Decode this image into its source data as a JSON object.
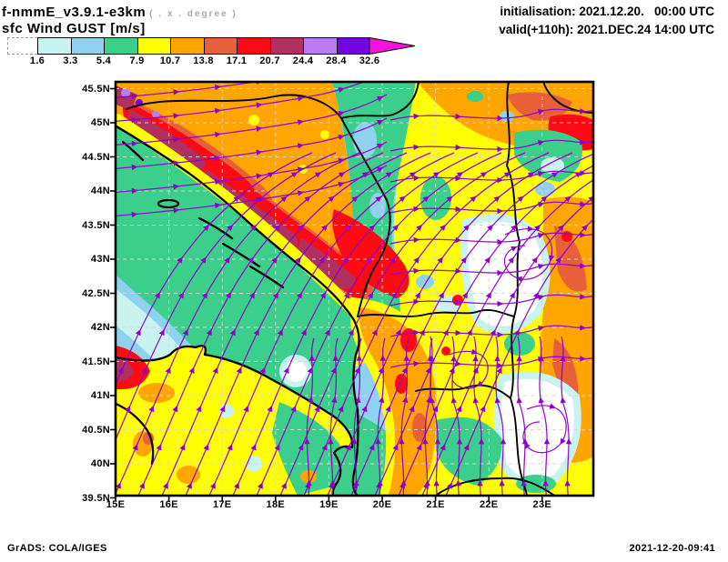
{
  "header": {
    "model_title": "f-nmmE_v3.9.1-e3km",
    "model_subtitle": "( . x . degree )",
    "field_title": "sfc Wind GUST [m/s]",
    "init_line": "initialisation: 2021.12.20.   00:00 UTC",
    "valid_line": "valid(+110h): 2021.DEC.24 14:00 UTC"
  },
  "colorbar": {
    "levels": [
      "1.6",
      "3.3",
      "5.4",
      "7.9",
      "10.7",
      "13.8",
      "17.1",
      "20.7",
      "24.4",
      "28.4",
      "32.6"
    ],
    "box_colors": [
      "#FFFFFF",
      "#C9F3F1",
      "#8FD2F0",
      "#3CCF8C",
      "#FFFF00",
      "#FFA500",
      "#E8603A",
      "#FC0B14",
      "#B03060",
      "#BB7CF2",
      "#7404E0"
    ],
    "overflow_arrow_color": "#F214DC"
  },
  "map": {
    "lat_ticks": [
      "45.5N",
      "45N",
      "44.5N",
      "44N",
      "43.5N",
      "43N",
      "42.5N",
      "42N",
      "41.5N",
      "41N",
      "40.5N",
      "40N",
      "39.5N"
    ],
    "lon_ticks": [
      "15E",
      "16E",
      "17E",
      "18E",
      "19E",
      "20E",
      "21E",
      "22E",
      "23E"
    ]
  },
  "footer": {
    "left": "GrADS: COLA/IGES",
    "right": "2021-12-20-09:41"
  },
  "chart_data": {
    "type": "heatmap",
    "title": "sfc Wind GUST [m/s]",
    "model": "f-nmmE_v3.9.1-e3km",
    "initialisation": "2021.12.20. 00:00 UTC",
    "valid": "2021.DEC.24 14:00 UTC",
    "forecast_hour": "+110h",
    "overlay": "wind streamlines (purple, with arrowheads)",
    "lon_ticks_deg_e": [
      15,
      16,
      17,
      18,
      19,
      20,
      21,
      22,
      23
    ],
    "lat_ticks_deg_n": [
      45.5,
      45,
      44.5,
      44,
      43.5,
      43,
      42.5,
      42,
      41.5,
      41,
      40.5,
      40,
      39.5
    ],
    "lon_range_deg_e": [
      15,
      23.95
    ],
    "lat_range_deg_n": [
      39.5,
      45.6
    ],
    "gust_levels_mps": [
      1.6,
      3.3,
      5.4,
      7.9,
      10.7,
      13.8,
      17.1,
      20.7,
      24.4,
      28.4,
      32.6
    ],
    "palette_hex": [
      "#FFFFFF",
      "#C9F3F1",
      "#8FD2F0",
      "#3CCF8C",
      "#FFFF00",
      "#FFA500",
      "#E8603A",
      "#FC0B14",
      "#B03060",
      "#BB7CF2",
      "#7404E0"
    ],
    "overflow_hex": "#F214DC",
    "grid": "dashed graticule every 0.5 deg lat / 1 deg lon",
    "legend_position": "horizontal bar top-left under titles",
    "notable_features": [
      "Strongest gusts 17-28 m/s (red/maroon, small violet spots >24 m/s) over the Dinaric Alps of Croatia/Bosnia in the NW, aligned SW-NE",
      "Bora/SW flow fanning across the Adriatic with 5-8 m/s (green) band along the eastern coast, lighter blues offshore",
      "Orange 10-17 m/s band along the Montenegro-Albania mountain chain running N-S near 19.5-20E",
      "Calm (<1.6 m/s, white) basins with swirling streamlines over Kosovo / North Macedonia around 20-21.5E, 41-42.5N",
      "Yellow/orange 8-15 m/s patchwork over Serbia and the far NE; red spot near 15E 41.3N on the Italian side",
      "Streamlines flow from SW to NE over the sea, E-NE inland in the north, with convergence/eddies in the SE"
    ]
  }
}
